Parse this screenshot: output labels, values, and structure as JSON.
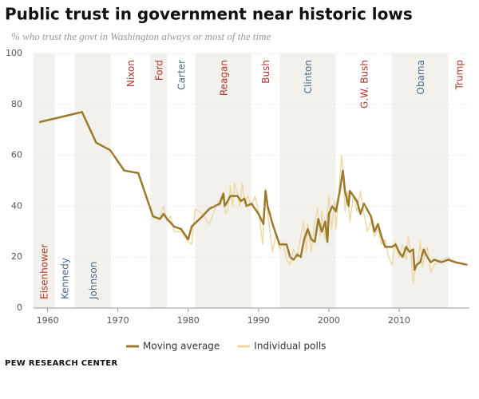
{
  "chart_data": {
    "type": "line",
    "title": "Public trust in government near historic lows",
    "subtitle": "% who trust the govt in Washington always or most of the time",
    "source": "PEW RESEARCH CENTER",
    "xlim": [
      1958,
      2020
    ],
    "xticks": [
      1960,
      1970,
      1980,
      1990,
      2000,
      2010
    ],
    "ylim": [
      0,
      100
    ],
    "yticks": [
      0,
      20,
      40,
      60,
      80,
      100
    ],
    "grid": true,
    "shade_color": "#f3f1ec",
    "presidents": [
      {
        "name": "Eisenhower",
        "start": 1953,
        "end": 1961,
        "color": "#b0392f",
        "shaded": true
      },
      {
        "name": "Kennedy",
        "start": 1961,
        "end": 1963.9,
        "color": "#4a6a8a",
        "shaded": false
      },
      {
        "name": "Johnson",
        "start": 1963.9,
        "end": 1969,
        "color": "#4a6a8a",
        "shaded": true
      },
      {
        "name": "Nixon",
        "start": 1969,
        "end": 1974.6,
        "color": "#b0392f",
        "shaded": false
      },
      {
        "name": "Ford",
        "start": 1974.6,
        "end": 1977,
        "color": "#b0392f",
        "shaded": true
      },
      {
        "name": "Carter",
        "start": 1977,
        "end": 1981,
        "color": "#4a6a8a",
        "shaded": false
      },
      {
        "name": "Reagan",
        "start": 1981,
        "end": 1989,
        "color": "#b0392f",
        "shaded": true
      },
      {
        "name": "Bush",
        "start": 1989,
        "end": 1993,
        "color": "#b0392f",
        "shaded": false
      },
      {
        "name": "Clinton",
        "start": 1993,
        "end": 2001,
        "color": "#4a6a8a",
        "shaded": true
      },
      {
        "name": "G.W. Bush",
        "start": 2001,
        "end": 2009,
        "color": "#b0392f",
        "shaded": false
      },
      {
        "name": "Obama",
        "start": 2009,
        "end": 2017,
        "color": "#4a6a8a",
        "shaded": true
      },
      {
        "name": "Trump",
        "start": 2017,
        "end": 2021,
        "color": "#b0392f",
        "shaded": false
      }
    ],
    "series": [
      {
        "name": "Individual polls",
        "color": "#ecd9a8",
        "width": 1.5,
        "x": [
          1976,
          1976.5,
          1977,
          1977.5,
          1978,
          1979,
          1980,
          1980.5,
          1981,
          1982,
          1983,
          1984,
          1985,
          1985.3,
          1985.6,
          1986,
          1986.3,
          1986.6,
          1987,
          1987.3,
          1987.7,
          1988,
          1988.5,
          1989,
          1989.5,
          1990,
          1990.6,
          1991,
          1991.4,
          1992,
          1992.5,
          1993,
          1993.5,
          1994,
          1994.5,
          1995,
          1995.5,
          1996,
          1996.4,
          1996.8,
          1997,
          1997.5,
          1998,
          1998.4,
          1998.8,
          1999,
          1999.4,
          2000,
          2000.4,
          2000.8,
          2001,
          2001.4,
          2001.8,
          2002,
          2002.3,
          2002.7,
          2003,
          2003.5,
          2004,
          2004.5,
          2005,
          2005.5,
          2006,
          2006.5,
          2007,
          2007.5,
          2008,
          2008.5,
          2009,
          2009.5,
          2010,
          2010.5,
          2011,
          2011.3,
          2011.7,
          2012,
          2012.3,
          2012.7,
          2013,
          2013.3,
          2013.7,
          2014,
          2014.5,
          2015,
          2016,
          2017,
          2017.5
        ],
        "values": [
          36,
          40,
          34,
          36,
          30,
          30,
          26,
          25,
          39,
          37,
          33,
          40,
          45,
          37,
          38,
          48,
          40,
          49,
          45,
          40,
          49,
          41,
          44,
          40,
          44,
          38,
          25,
          47,
          35,
          22,
          29,
          23,
          26,
          19,
          17,
          23,
          20,
          28,
          34,
          22,
          33,
          22,
          34,
          39,
          28,
          38,
          27,
          44,
          31,
          42,
          31,
          44,
          60,
          55,
          38,
          46,
          34,
          44,
          38,
          46,
          37,
          30,
          34,
          28,
          31,
          25,
          27,
          20,
          17,
          26,
          20,
          25,
          19,
          28,
          21,
          10,
          15,
          18,
          26,
          16,
          22,
          24,
          14,
          17,
          19,
          20,
          18
        ]
      },
      {
        "name": "Moving average",
        "color": "#9c7a2c",
        "width": 2.5,
        "x": [
          1958.8,
          1964.9,
          1966.9,
          1968.9,
          1970.9,
          1972.9,
          1975,
          1976,
          1976.5,
          1977,
          1978,
          1979,
          1980,
          1980.5,
          1982,
          1983,
          1984.5,
          1985,
          1985.2,
          1986,
          1987,
          1987.5,
          1988,
          1988.3,
          1989,
          1990,
          1990.7,
          1991,
          1991.3,
          1992,
          1992.5,
          1993,
          1994,
          1994.5,
          1995,
          1995.5,
          1996,
          1996.5,
          1997,
          1997.5,
          1998,
          1998.5,
          1999,
          1999.5,
          1999.8,
          2000,
          2000.5,
          2001,
          2001.5,
          2002,
          2002.3,
          2002.8,
          2003,
          2004,
          2004.5,
          2005,
          2006,
          2006.5,
          2007,
          2007.5,
          2008,
          2009,
          2009.5,
          2010,
          2010.5,
          2011,
          2011.5,
          2012,
          2012.2,
          2012.5,
          2013,
          2013.5,
          2014,
          2014.5,
          2015,
          2016,
          2017,
          2018,
          2019.7
        ],
        "values": [
          73,
          77,
          65,
          62,
          54,
          53,
          36,
          35,
          37,
          35,
          32,
          31,
          27,
          32,
          36,
          39,
          41,
          45,
          40,
          44,
          44,
          42,
          43,
          40,
          41,
          37,
          33,
          46,
          40,
          33,
          29,
          25,
          25,
          20,
          19,
          21,
          20,
          27,
          31,
          27,
          26,
          35,
          30,
          34,
          26,
          37,
          40,
          38,
          45,
          54,
          46,
          40,
          46,
          42,
          37,
          41,
          36,
          30,
          33,
          28,
          24,
          24,
          25,
          22,
          20,
          24,
          22,
          23,
          15,
          17,
          18,
          23,
          20,
          18,
          19,
          18,
          19,
          18,
          17
        ]
      }
    ],
    "legend_order": [
      1,
      0
    ]
  }
}
